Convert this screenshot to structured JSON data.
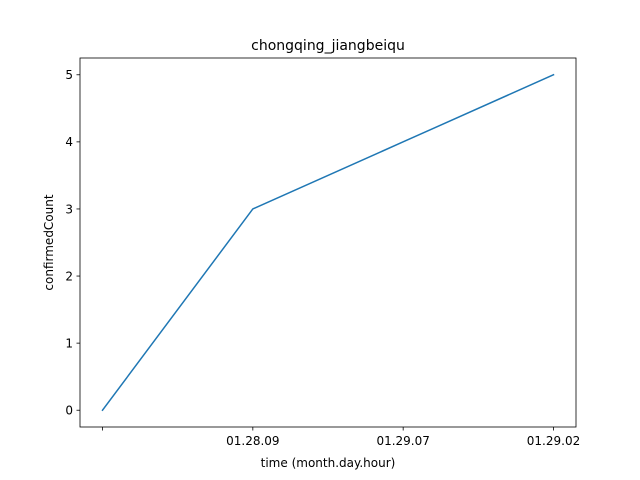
{
  "chart_data": {
    "type": "line",
    "title": "chongqing_jiangbeiqu",
    "xlabel": "time (month.day.hour)",
    "ylabel": "confirmedCount",
    "x_ticks": [
      "",
      "01.28.09",
      "01.29.07",
      "01.29.02"
    ],
    "y_ticks": [
      0,
      1,
      2,
      3,
      4,
      5
    ],
    "ylim": [
      -0.25,
      5.25
    ],
    "grid": false,
    "series": [
      {
        "values": [
          0,
          3,
          4,
          5
        ],
        "color": "#1f77b4"
      }
    ]
  }
}
